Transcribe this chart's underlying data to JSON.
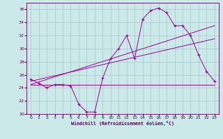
{
  "xlabel": "Windchill (Refroidissement éolien,°C)",
  "bg_color": "#cce9e9",
  "line_color": "#990099",
  "xlim": [
    -0.5,
    23.5
  ],
  "ylim": [
    20,
    37
  ],
  "yticks": [
    20,
    22,
    24,
    26,
    28,
    30,
    32,
    34,
    36
  ],
  "xticks": [
    0,
    1,
    2,
    3,
    4,
    5,
    6,
    7,
    8,
    9,
    10,
    11,
    12,
    13,
    14,
    15,
    16,
    17,
    18,
    19,
    20,
    21,
    22,
    23
  ],
  "grid_color": "#aac4c4",
  "line1_x": [
    0,
    1,
    2,
    3,
    4,
    5,
    6,
    7,
    8,
    9,
    10,
    11,
    12,
    13,
    14,
    15,
    16,
    17,
    18,
    19,
    20,
    21,
    22,
    23
  ],
  "line1_y": [
    25.3,
    24.7,
    24.0,
    24.5,
    24.5,
    24.3,
    21.5,
    20.3,
    20.3,
    25.5,
    28.5,
    30.0,
    32.0,
    28.5,
    34.5,
    35.8,
    36.2,
    35.5,
    33.5,
    33.5,
    32.0,
    29.0,
    26.5,
    25.0
  ],
  "line2_x": [
    0,
    23
  ],
  "line2_y": [
    24.5,
    24.5
  ],
  "line3_x": [
    0,
    23
  ],
  "line3_y": [
    24.5,
    33.5
  ],
  "line4_x": [
    0,
    23
  ],
  "line4_y": [
    25.0,
    31.5
  ]
}
